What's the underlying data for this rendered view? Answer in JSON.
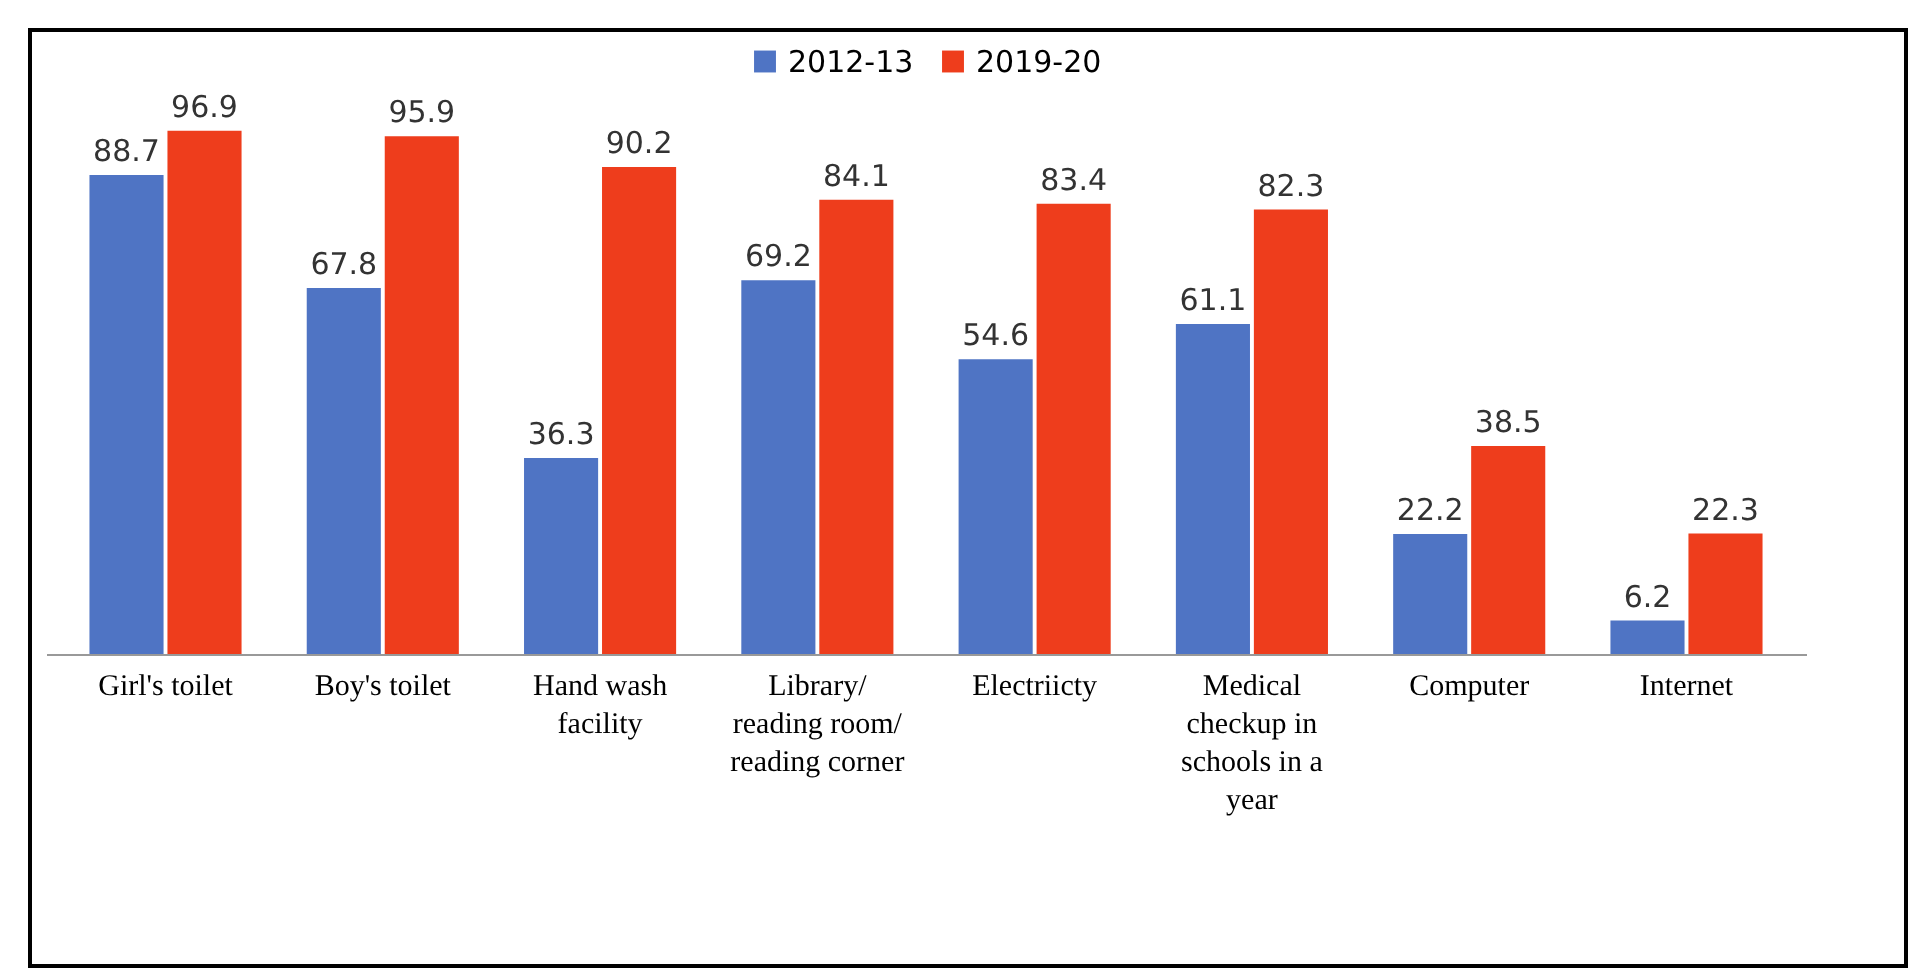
{
  "chart_data": {
    "type": "bar",
    "categories": [
      "Girl's toilet",
      "Boy's toilet",
      "Hand wash facility",
      "Library/ reading room/ reading corner",
      "Electriicty",
      "Medical checkup in schools in a year",
      "Computer",
      "Internet"
    ],
    "series": [
      {
        "name": "2012-13",
        "color": "#4f74c4",
        "values": [
          88.7,
          67.8,
          36.3,
          69.2,
          54.6,
          61.1,
          22.2,
          6.2
        ]
      },
      {
        "name": "2019-20",
        "color": "#ee3d1c",
        "values": [
          96.9,
          95.9,
          90.2,
          84.1,
          83.4,
          82.3,
          38.5,
          22.3
        ]
      }
    ],
    "data_labels": true,
    "legend": "top"
  }
}
